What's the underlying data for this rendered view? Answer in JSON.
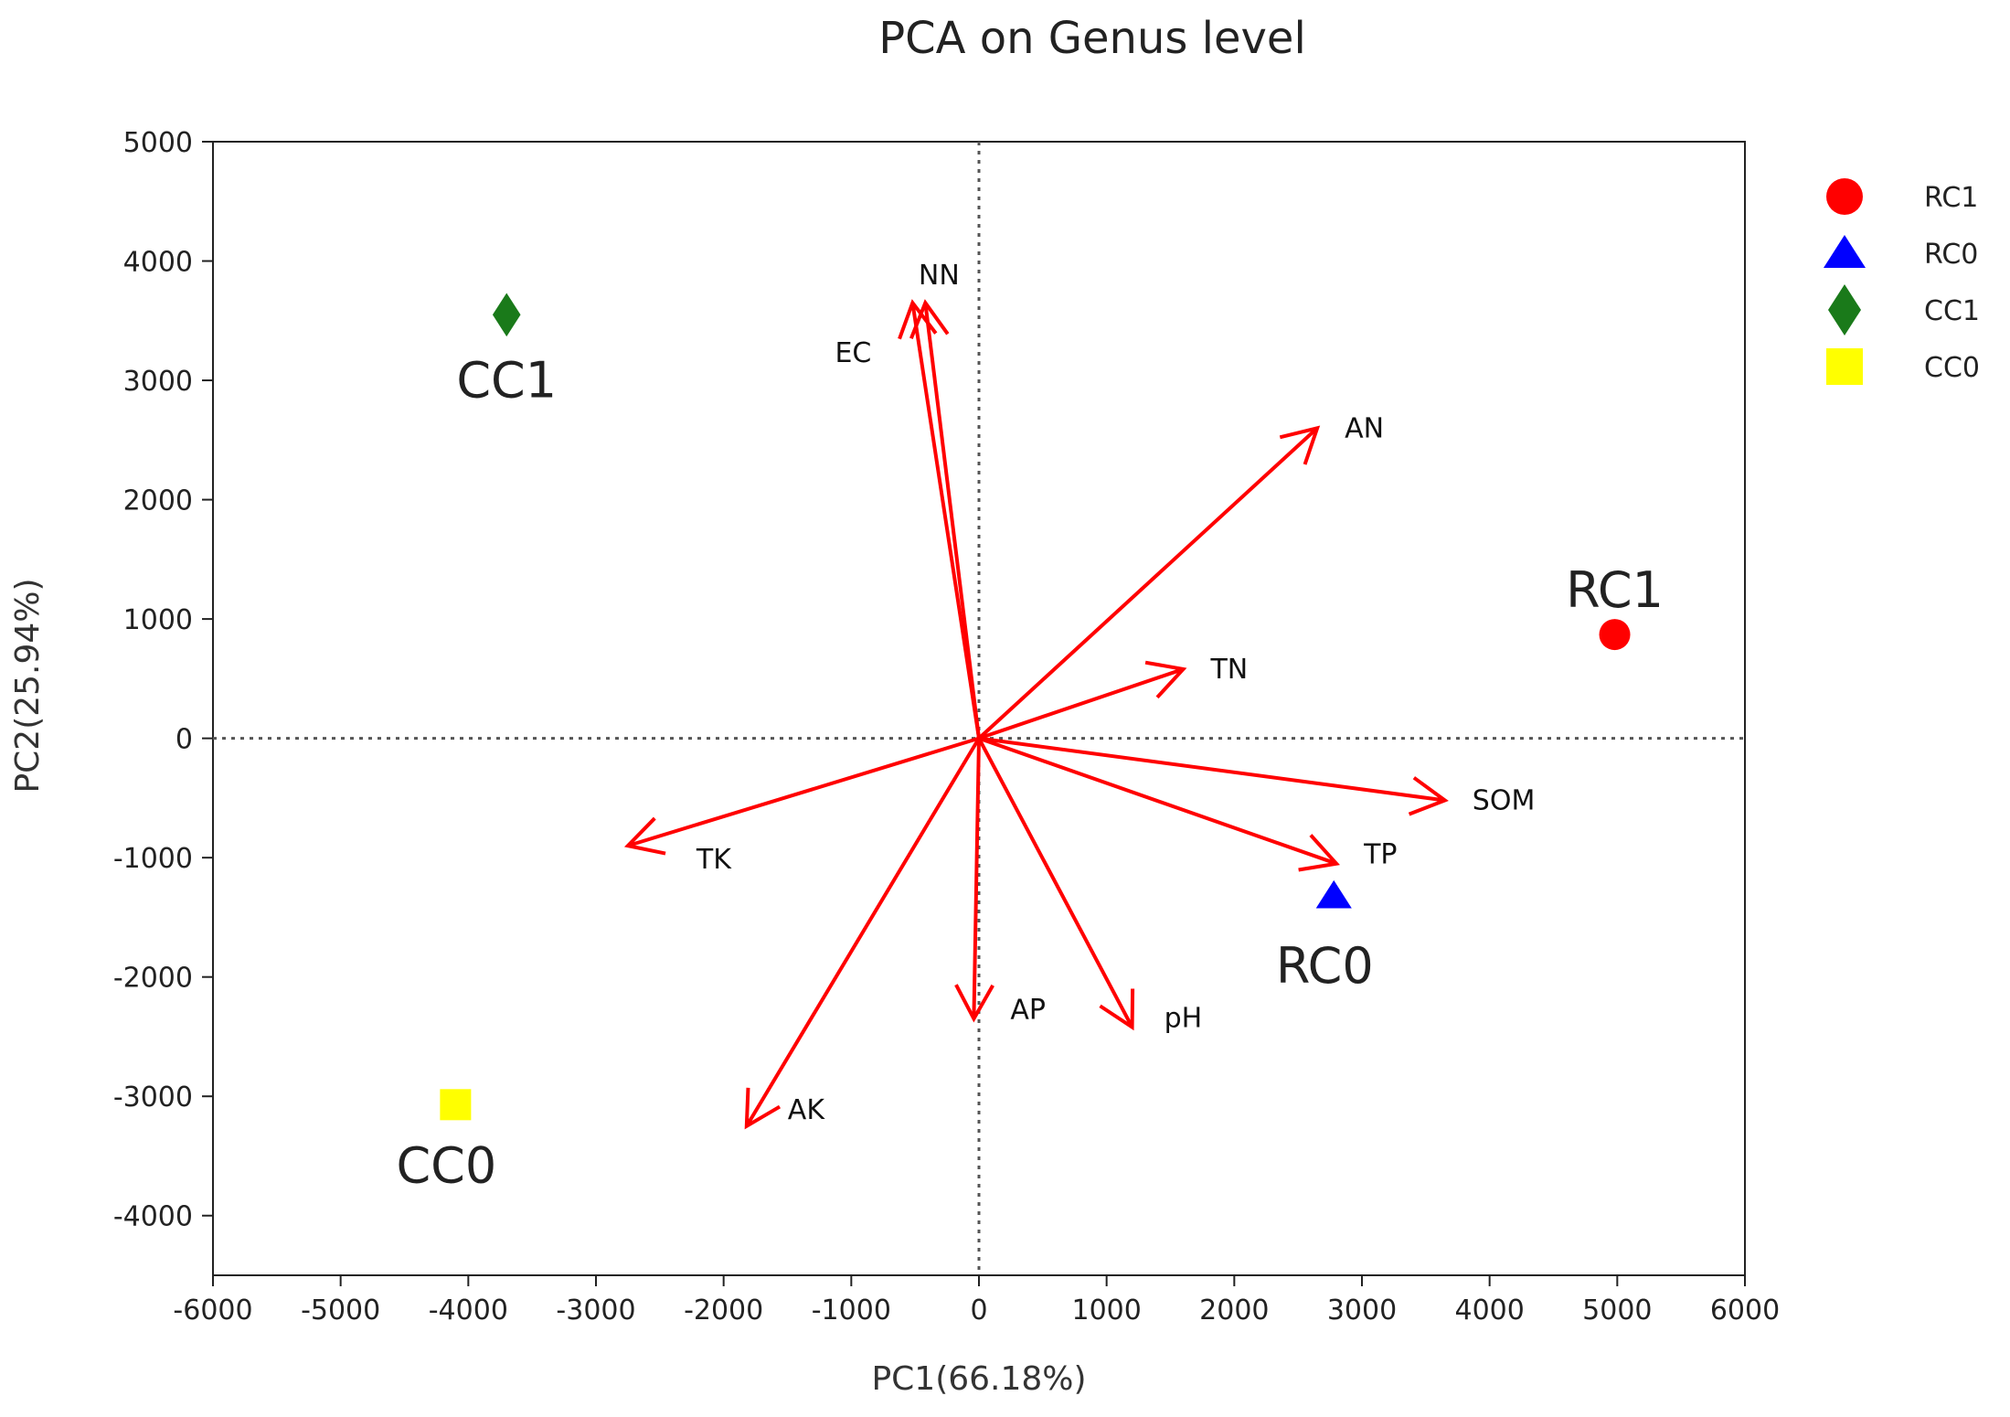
{
  "chart_data": {
    "type": "scatter",
    "title": "PCA on Genus level",
    "xlabel": "PC1(66.18%)",
    "ylabel": "PC2(25.94%)",
    "xlim": [
      -6000,
      6000
    ],
    "ylim": [
      -4500,
      5000
    ],
    "xticks": [
      -6000,
      -5000,
      -4000,
      -3000,
      -2000,
      -1000,
      0,
      1000,
      2000,
      3000,
      4000,
      5000,
      6000
    ],
    "yticks": [
      -4000,
      -3000,
      -2000,
      -1000,
      0,
      1000,
      2000,
      3000,
      4000,
      5000
    ],
    "zero_lines": true,
    "vector_color": "#ff0000",
    "vectors": [
      {
        "name": "NN",
        "x": -420,
        "y": 3650
      },
      {
        "name": "EC",
        "x": -520,
        "y": 3650
      },
      {
        "name": "AN",
        "x": 2650,
        "y": 2600
      },
      {
        "name": "TN",
        "x": 1600,
        "y": 580
      },
      {
        "name": "SOM",
        "x": 3650,
        "y": -520
      },
      {
        "name": "TP",
        "x": 2800,
        "y": -1050
      },
      {
        "name": "TK",
        "x": -2750,
        "y": -900
      },
      {
        "name": "AP",
        "x": -40,
        "y": -2350
      },
      {
        "name": "pH",
        "x": 1200,
        "y": -2420
      },
      {
        "name": "AK",
        "x": -1820,
        "y": -3250
      }
    ],
    "series": [
      {
        "name": "RC1",
        "x": 4980,
        "y": 870,
        "marker": "circle",
        "color": "#ff0000"
      },
      {
        "name": "RC0",
        "x": 2780,
        "y": -1320,
        "marker": "triangle",
        "color": "#0000ff"
      },
      {
        "name": "CC1",
        "x": -3700,
        "y": 3550,
        "marker": "diamond",
        "color": "#1a7a1a"
      },
      {
        "name": "CC0",
        "x": -4100,
        "y": -3070,
        "marker": "square",
        "color": "#ffff00"
      }
    ],
    "legend": "right"
  }
}
